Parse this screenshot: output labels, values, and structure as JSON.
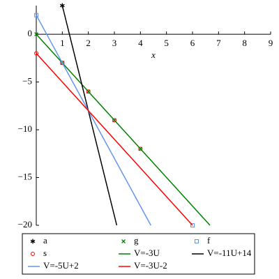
{
  "chart_data": {
    "type": "line",
    "x_label": "x",
    "xlim": [
      0,
      9
    ],
    "ylim": [
      -20,
      3
    ],
    "xticks": [
      0,
      1,
      2,
      3,
      4,
      5,
      6,
      7,
      8,
      9
    ],
    "yticks": [
      0,
      {
        "value": -5,
        "label": "−5"
      },
      {
        "value": -10,
        "label": "−10"
      },
      {
        "value": -15,
        "label": "−15"
      },
      {
        "value": -20,
        "label": "−20"
      }
    ],
    "legend": "bottom",
    "series": [
      {
        "name": "a",
        "kind": "points",
        "marker": "star",
        "color": "#000000",
        "x": [
          1
        ],
        "values": [
          3
        ]
      },
      {
        "name": "g",
        "kind": "points",
        "marker": "cross",
        "color": "#008000",
        "x": [
          0,
          1,
          2,
          3,
          4
        ],
        "values": [
          0,
          -3,
          -6,
          -9,
          -12
        ]
      },
      {
        "name": "f",
        "kind": "points",
        "marker": "square",
        "color": "#6495ed",
        "x": [
          0,
          1,
          6
        ],
        "values": [
          2,
          -3,
          -20
        ]
      },
      {
        "name": "s",
        "kind": "points",
        "marker": "circle",
        "color": "#ff0000",
        "x": [
          0,
          1,
          2,
          3,
          4
        ],
        "values": [
          -2,
          -3,
          -6,
          -9,
          -12
        ]
      },
      {
        "name": "V=-3U",
        "kind": "line",
        "color": "#008000",
        "x": [
          0,
          6.67
        ],
        "values": [
          0,
          -20
        ]
      },
      {
        "name": "V=-11U+14",
        "kind": "line",
        "color": "#000000",
        "x": [
          1,
          3.09
        ],
        "values": [
          3,
          -20
        ]
      },
      {
        "name": "V=-5U+2",
        "kind": "line",
        "color": "#6495ed",
        "x": [
          0,
          4.4
        ],
        "values": [
          2,
          -20
        ]
      },
      {
        "name": "V=-3U-2",
        "kind": "line",
        "color": "#ff0000",
        "x": [
          0,
          6
        ],
        "values": [
          -2,
          -20
        ]
      }
    ]
  }
}
